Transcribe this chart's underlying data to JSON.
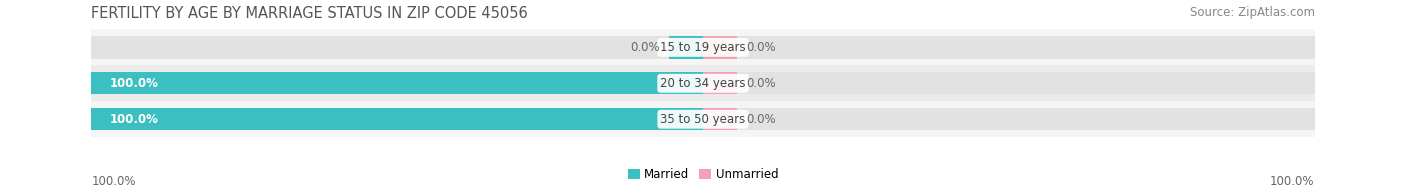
{
  "title": "FERTILITY BY AGE BY MARRIAGE STATUS IN ZIP CODE 45056",
  "source": "Source: ZipAtlas.com",
  "categories": [
    "15 to 19 years",
    "20 to 34 years",
    "35 to 50 years"
  ],
  "married_values": [
    0.0,
    100.0,
    100.0
  ],
  "unmarried_values": [
    0.0,
    0.0,
    0.0
  ],
  "married_color": "#3bbfc0",
  "unmarried_color": "#f5a0b5",
  "bar_bg_color": "#e2e2e2",
  "row_bg_even": "#f0f0f0",
  "row_bg_odd": "#e8e8e8",
  "bar_height": 0.62,
  "title_fontsize": 10.5,
  "source_fontsize": 8.5,
  "label_fontsize": 8.5,
  "category_fontsize": 8.5,
  "legend_fontsize": 8.5,
  "fig_bg_color": "#ffffff",
  "ax_bg_color": "#ececec",
  "bottom_left_label": "100.0%",
  "bottom_right_label": "100.0%",
  "small_indicator": 5.5,
  "label_color_on_bar": "#ffffff",
  "label_color_off_bar": "#666666"
}
